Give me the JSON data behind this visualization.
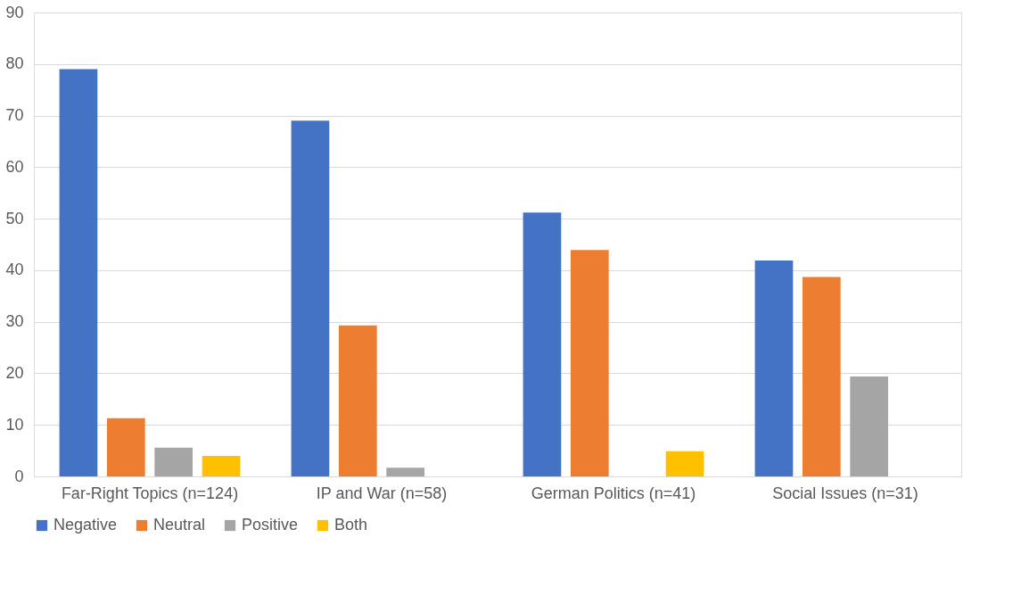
{
  "chart_data": {
    "type": "bar",
    "categories": [
      "Far-Right Topics (n=124)",
      "IP and War (n=58)",
      "German Politics (n=41)",
      "Social Issues (n=31)"
    ],
    "series": [
      {
        "name": "Negative",
        "color": "#4472c4",
        "values": [
          79.0,
          69.0,
          51.2,
          41.9
        ]
      },
      {
        "name": "Neutral",
        "color": "#ed7d31",
        "values": [
          11.3,
          29.3,
          43.9,
          38.7
        ]
      },
      {
        "name": "Positive",
        "color": "#a5a5a5",
        "values": [
          5.6,
          1.7,
          0,
          19.4
        ]
      },
      {
        "name": "Both",
        "color": "#ffc000",
        "values": [
          4.0,
          0,
          4.9,
          0
        ]
      }
    ],
    "ylim": [
      0,
      90
    ],
    "yticks": [
      0,
      10,
      20,
      30,
      40,
      50,
      60,
      70,
      80,
      90
    ],
    "grid": "y",
    "legend": "bottom"
  }
}
